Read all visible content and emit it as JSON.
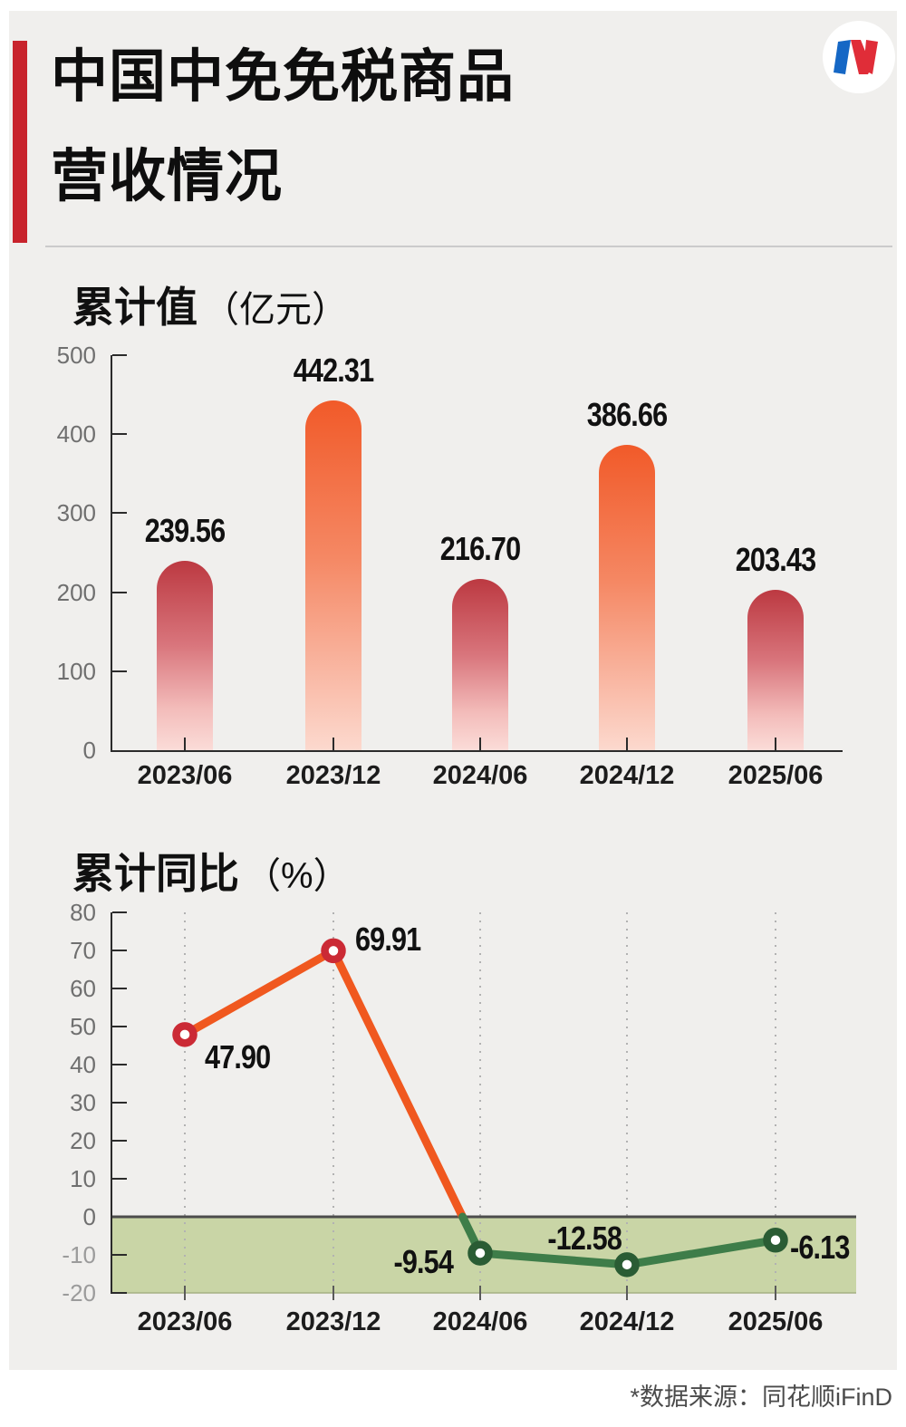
{
  "header": {
    "title_line1": "中国中免免税商品",
    "title_line2": "营收情况",
    "accent_color": "#c8232c",
    "logo_icon": "nbd-logo",
    "logo_colors": {
      "blue": "#1567c5",
      "red": "#e02d38",
      "circle": "#ffffff"
    }
  },
  "footer": {
    "source_note": "*数据来源：同花顺iFinD"
  },
  "chart_data": [
    {
      "type": "bar",
      "title": "累计值",
      "unit_label": "（亿元）",
      "categories": [
        "2023/06",
        "2023/12",
        "2024/06",
        "2024/12",
        "2025/06"
      ],
      "values": [
        239.56,
        442.31,
        216.7,
        386.66,
        203.43
      ],
      "value_labels": [
        "239.56",
        "442.31",
        "216.70",
        "386.66",
        "203.43"
      ],
      "bar_colors": [
        "red",
        "orange",
        "red",
        "orange",
        "red"
      ],
      "ylim": [
        0,
        500
      ],
      "yticks": [
        0,
        100,
        200,
        300,
        400,
        500
      ],
      "grid": false,
      "colors": {
        "red_bar_top": "#bc3941",
        "orange_bar_top": "#f15a29",
        "bar_fade_bottom": "#fbdcd8",
        "axis": "#2b2b2b"
      }
    },
    {
      "type": "line",
      "title": "累计同比",
      "unit_label": "（%）",
      "categories": [
        "2023/06",
        "2023/12",
        "2024/06",
        "2024/12",
        "2025/06"
      ],
      "values": [
        47.9,
        69.91,
        -9.54,
        -12.58,
        -6.13
      ],
      "value_labels": [
        "47.90",
        "69.91",
        "-9.54",
        "-12.58",
        "-6.13"
      ],
      "ylim": [
        -20,
        80
      ],
      "yticks": [
        80,
        70,
        60,
        50,
        40,
        30,
        20,
        10,
        0,
        -10,
        -20
      ],
      "grid": "dotted-vertical",
      "colors": {
        "line_positive": "#f0581f",
        "line_negative": "#3e7d49",
        "marker_ring_positive": "#cb2a35",
        "marker_ring_negative": "#2a5c34",
        "marker_center": "#ffffff",
        "negative_band": "#c9d5a6",
        "zero_line": "#4c4c4c"
      },
      "marker_colors": [
        "#cb2a35",
        "#cb2a35",
        "#2a5c34",
        "#2a5c34",
        "#2a5c34"
      ]
    }
  ]
}
